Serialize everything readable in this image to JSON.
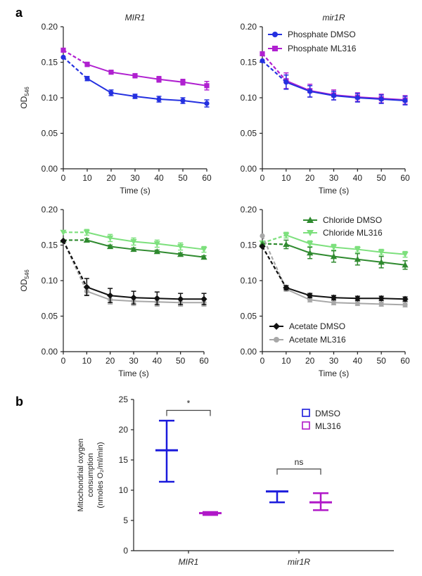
{
  "panel_labels": {
    "a": "a",
    "b": "b"
  },
  "colors": {
    "phosphate_dmso": "#2430e0",
    "phosphate_ml316": "#b020d0",
    "chloride_dmso": "#2f8a2f",
    "chloride_ml316": "#7de07d",
    "acetate_dmso": "#111111",
    "acetate_ml316": "#a8a8a8",
    "dmso": "#1a1adc",
    "ml316": "#b018c8",
    "axis": "#222222"
  },
  "chart_data": [
    {
      "id": "p1",
      "type": "line",
      "title": "MIR1",
      "xlabel": "Time (s)",
      "ylabel_main": "OD",
      "ylabel_sub": "546",
      "xlim": [
        0,
        60
      ],
      "ylim": [
        0,
        0.2
      ],
      "x_ticks": [
        "0",
        "10",
        "20",
        "30",
        "40",
        "50",
        "60"
      ],
      "y_ticks": [
        "0.00",
        "0.05",
        "0.10",
        "0.15",
        "0.20"
      ],
      "x": [
        0,
        10,
        20,
        30,
        40,
        50,
        60
      ],
      "series": [
        {
          "key": "phosphate_dmso",
          "marker": "circle",
          "values": [
            0.157,
            0.127,
            0.107,
            0.102,
            0.098,
            0.096,
            0.092
          ],
          "errors": [
            0,
            0.003,
            0.004,
            0.003,
            0.004,
            0.004,
            0.005
          ]
        },
        {
          "key": "phosphate_ml316",
          "marker": "square",
          "values": [
            0.167,
            0.147,
            0.136,
            0.131,
            0.126,
            0.122,
            0.117
          ],
          "errors": [
            0,
            0.003,
            0.002,
            0.003,
            0.004,
            0.004,
            0.006
          ]
        }
      ]
    },
    {
      "id": "p2",
      "type": "line",
      "title": "mir1R",
      "xlabel": "Time (s)",
      "ylabel_main": "",
      "ylabel_sub": "",
      "xlim": [
        0,
        60
      ],
      "ylim": [
        0,
        0.2
      ],
      "x_ticks": [
        "0",
        "10",
        "20",
        "30",
        "40",
        "50",
        "60"
      ],
      "y_ticks": [
        "0.00",
        "0.05",
        "0.10",
        "0.15",
        "0.20"
      ],
      "x": [
        0,
        10,
        20,
        30,
        40,
        50,
        60
      ],
      "legend": [
        {
          "key": "phosphate_dmso",
          "marker": "circle",
          "name": "Phosphate DMSO"
        },
        {
          "key": "phosphate_ml316",
          "marker": "square",
          "name": "Phosphate ML316"
        }
      ],
      "series": [
        {
          "key": "phosphate_ml316",
          "marker": "square",
          "values": [
            0.162,
            0.124,
            0.11,
            0.104,
            0.101,
            0.099,
            0.097
          ],
          "errors": [
            0,
            0.011,
            0.009,
            0.007,
            0.006,
            0.006,
            0.006
          ]
        },
        {
          "key": "phosphate_dmso",
          "marker": "circle",
          "values": [
            0.152,
            0.122,
            0.109,
            0.103,
            0.1,
            0.098,
            0.096
          ],
          "errors": [
            0,
            0.01,
            0.008,
            0.006,
            0.006,
            0.006,
            0.006
          ]
        }
      ]
    },
    {
      "id": "p3",
      "type": "line",
      "title": "",
      "xlabel": "Time (s)",
      "ylabel_main": "OD",
      "ylabel_sub": "546",
      "xlim": [
        0,
        60
      ],
      "ylim": [
        0,
        0.2
      ],
      "x_ticks": [
        "0",
        "10",
        "20",
        "30",
        "40",
        "50",
        "60"
      ],
      "y_ticks": [
        "0.00",
        "0.05",
        "0.10",
        "0.15",
        "0.20"
      ],
      "x": [
        0,
        10,
        20,
        30,
        40,
        50,
        60
      ],
      "series": [
        {
          "key": "chloride_ml316",
          "marker": "tri-down",
          "values": [
            0.168,
            0.168,
            0.16,
            0.155,
            0.152,
            0.148,
            0.144
          ],
          "errors": [
            0,
            0.004,
            0.005,
            0.005,
            0.005,
            0.005,
            0.004
          ]
        },
        {
          "key": "chloride_dmso",
          "marker": "tri-up",
          "values": [
            0.157,
            0.157,
            0.148,
            0.144,
            0.141,
            0.137,
            0.133
          ],
          "errors": [
            0,
            0.002,
            0.002,
            0.002,
            0.002,
            0.002,
            0.002
          ]
        },
        {
          "key": "acetate_ml316",
          "marker": "circle",
          "values": [
            0.156,
            0.085,
            0.073,
            0.071,
            0.07,
            0.069,
            0.069
          ],
          "errors": [
            0,
            0.005,
            0.006,
            0.006,
            0.006,
            0.005,
            0.005
          ]
        },
        {
          "key": "acetate_dmso",
          "marker": "diamond",
          "values": [
            0.156,
            0.091,
            0.079,
            0.076,
            0.075,
            0.074,
            0.074
          ],
          "errors": [
            0,
            0.012,
            0.01,
            0.009,
            0.009,
            0.008,
            0.008
          ]
        }
      ]
    },
    {
      "id": "p4",
      "type": "line",
      "title": "",
      "xlabel": "Time (s)",
      "ylabel_main": "",
      "ylabel_sub": "",
      "xlim": [
        0,
        60
      ],
      "ylim": [
        0,
        0.2
      ],
      "x_ticks": [
        "0",
        "10",
        "20",
        "30",
        "40",
        "50",
        "60"
      ],
      "y_ticks": [
        "0.00",
        "0.05",
        "0.10",
        "0.15",
        "0.20"
      ],
      "x": [
        0,
        10,
        20,
        30,
        40,
        50,
        60
      ],
      "legend_top": [
        {
          "key": "chloride_dmso",
          "marker": "tri-up",
          "name": "Chloride DMSO"
        },
        {
          "key": "chloride_ml316",
          "marker": "tri-down",
          "name": "Chloride ML316"
        }
      ],
      "legend_bottom": [
        {
          "key": "acetate_dmso",
          "marker": "diamond",
          "name": "Acetate DMSO"
        },
        {
          "key": "acetate_ml316",
          "marker": "circle",
          "name": "Acetate ML316"
        }
      ],
      "series": [
        {
          "key": "chloride_ml316",
          "marker": "tri-down",
          "values": [
            0.153,
            0.164,
            0.152,
            0.147,
            0.144,
            0.14,
            0.137
          ],
          "errors": [
            0,
            0.004,
            0.004,
            0.004,
            0.004,
            0.004,
            0.004
          ]
        },
        {
          "key": "chloride_dmso",
          "marker": "tri-up",
          "values": [
            0.152,
            0.151,
            0.139,
            0.134,
            0.13,
            0.126,
            0.122
          ],
          "errors": [
            0,
            0.006,
            0.008,
            0.008,
            0.008,
            0.008,
            0.006
          ]
        },
        {
          "key": "acetate_ml316",
          "marker": "circle",
          "values": [
            0.163,
            0.088,
            0.073,
            0.069,
            0.068,
            0.067,
            0.066
          ],
          "errors": [
            0,
            0.003,
            0.003,
            0.003,
            0.003,
            0.003,
            0.003
          ]
        },
        {
          "key": "acetate_dmso",
          "marker": "diamond",
          "values": [
            0.148,
            0.09,
            0.079,
            0.076,
            0.075,
            0.075,
            0.074
          ],
          "errors": [
            0,
            0.003,
            0.003,
            0.003,
            0.003,
            0.003,
            0.003
          ]
        }
      ]
    },
    {
      "id": "p5",
      "type": "scatter",
      "title": "",
      "ylabel_lines": [
        "Mitochondrial oxygen",
        "consumption",
        "(nmoles O₂/ml/min)"
      ],
      "ylim": [
        0,
        25
      ],
      "y_ticks": [
        "0",
        "5",
        "10",
        "15",
        "20",
        "25"
      ],
      "categories": [
        "MIR1",
        "mir1R"
      ],
      "legend": [
        {
          "key": "dmso",
          "name": "DMSO"
        },
        {
          "key": "ml316",
          "name": "ML316"
        }
      ],
      "groups": [
        {
          "category": "MIR1",
          "series": "dmso",
          "mean": 16.6,
          "low": 11.4,
          "high": 21.5
        },
        {
          "category": "MIR1",
          "series": "ml316",
          "mean": 6.2,
          "low": 5.9,
          "high": 6.4
        },
        {
          "category": "mir1R",
          "series": "dmso",
          "mean": 9.8,
          "low": 8.0,
          "high": 9.8
        },
        {
          "category": "mir1R",
          "series": "ml316",
          "mean": 8.0,
          "low": 6.7,
          "high": 9.5
        }
      ],
      "significance": [
        {
          "category": "MIR1",
          "label": "*"
        },
        {
          "category": "mir1R",
          "label": "ns"
        }
      ]
    }
  ]
}
